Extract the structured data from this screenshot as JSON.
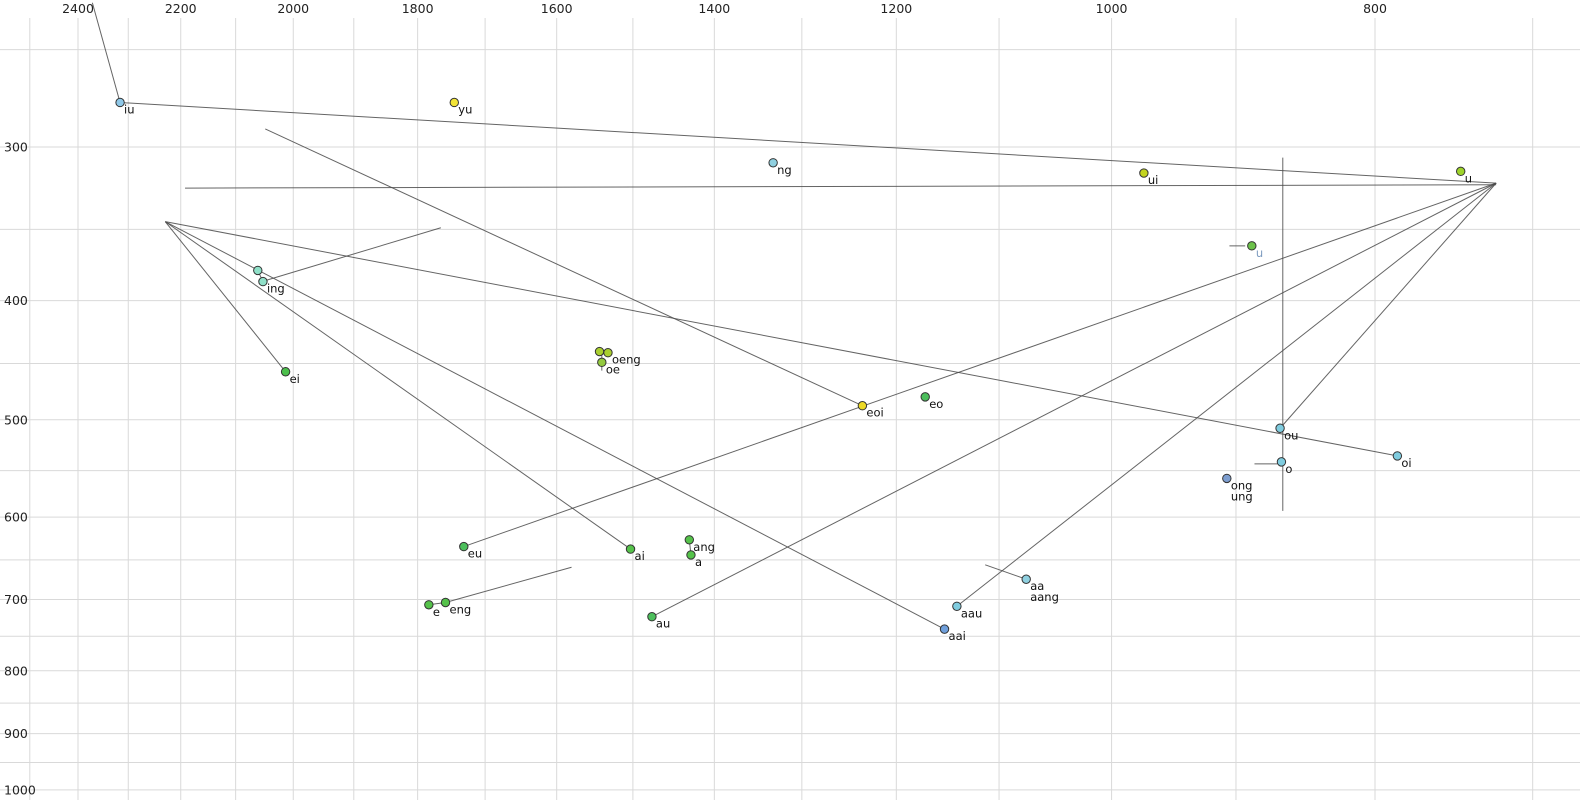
{
  "chart_data": {
    "type": "scatter",
    "title": "",
    "description": "Vowel formant plot (F2 horizontal, reversed, log scale; F1 vertical, downward, log scale) with labeled vowel points and diphthong trajectory lines",
    "x_axis": {
      "scale": "log",
      "direction": "reversed",
      "tick_labels": [
        2400,
        2200,
        2000,
        1800,
        1600,
        1400,
        1200,
        1000,
        800
      ],
      "grid_from": 2500,
      "grid_to": 700,
      "grid_step": 100,
      "range": [
        2565,
        672
      ]
    },
    "y_axis": {
      "scale": "log",
      "direction": "down",
      "tick_labels": [
        300,
        400,
        500,
        600,
        700,
        800,
        900,
        1000
      ],
      "grid_from": 250,
      "grid_to": 1000,
      "grid_step": 50,
      "range": [
        228,
        1010
      ]
    },
    "colors": {
      "background": "#ffffff",
      "grid": "#d9d9d9",
      "trajectory": "#4a4a4a",
      "point_stroke": "#333333",
      "label": "#111111",
      "tick_label": "#222222"
    },
    "points": [
      {
        "label": "iu",
        "f2": 2316,
        "f1": 276,
        "color": "#8fc8e8"
      },
      {
        "label": "yu",
        "f2": 1745,
        "f1": 276,
        "color": "#f2e437"
      },
      {
        "label": "ng",
        "f2": 1332,
        "f1": 309,
        "color": "#8fd0e0"
      },
      {
        "label": "ui",
        "f2": 973,
        "f1": 315,
        "color": "#c3d41f"
      },
      {
        "label": "u",
        "f2": 744,
        "f1": 314,
        "color": "#9ed32a"
      },
      {
        "label": "u",
        "f2": 888,
        "f1": 361,
        "color": "#6cc24a",
        "label_color": "#7e9cc0"
      },
      {
        "label": "ing",
        "f2": 2052,
        "f1": 386,
        "color": "#8fe0c8"
      },
      {
        "label": "",
        "f2": 2061,
        "f1": 378,
        "color": "#8fe0c8"
      },
      {
        "label": "ei",
        "f2": 2013,
        "f1": 457,
        "color": "#4cbf4c"
      },
      {
        "label": "oeng",
        "f2": 1532,
        "f1": 441,
        "color": "#a9cf2f"
      },
      {
        "label": "",
        "f2": 1543,
        "f1": 440,
        "color": "#a9cf2f"
      },
      {
        "label": "oe",
        "f2": 1540,
        "f1": 449,
        "color": "#93c93f"
      },
      {
        "label": "eoi",
        "f2": 1235,
        "f1": 487,
        "color": "#ecd926"
      },
      {
        "label": "eo",
        "f2": 1171,
        "f1": 479,
        "color": "#4cbf5c"
      },
      {
        "label": "ou",
        "f2": 867,
        "f1": 508,
        "color": "#7fccdf"
      },
      {
        "label": "o",
        "f2": 866,
        "f1": 541,
        "color": "#7fccdf"
      },
      {
        "label": "oi",
        "f2": 785,
        "f1": 535,
        "color": "#7fccdf"
      },
      {
        "label": "ong",
        "label2": "ung",
        "f2": 907,
        "f1": 558,
        "color": "#7d9ed0"
      },
      {
        "label": "eu",
        "f2": 1731,
        "f1": 634,
        "color": "#4cbf5c"
      },
      {
        "label": "ai",
        "f2": 1503,
        "f1": 637,
        "color": "#55c24a"
      },
      {
        "label": "ang",
        "f2": 1430,
        "f1": 626,
        "color": "#55c24a"
      },
      {
        "label": "a",
        "f2": 1428,
        "f1": 644,
        "color": "#55c24a"
      },
      {
        "label": "e",
        "f2": 1783,
        "f1": 707,
        "color": "#55c24a"
      },
      {
        "label": "eng",
        "f2": 1758,
        "f1": 704,
        "color": "#55c24a"
      },
      {
        "label": "au",
        "f2": 1476,
        "f1": 723,
        "color": "#4cbf5c"
      },
      {
        "label": "aau",
        "f2": 1140,
        "f1": 709,
        "color": "#7fccdf"
      },
      {
        "label": "aai",
        "f2": 1152,
        "f1": 740,
        "color": "#6f9fdb"
      },
      {
        "label": "aa",
        "label2": "aang",
        "f2": 1075,
        "f1": 674,
        "color": "#8fd0e0"
      }
    ],
    "lines": [
      {
        "name": "edge-to-iu",
        "from": [
          2371,
          229
        ],
        "to": [
          2316,
          276
        ]
      },
      {
        "name": "iu-to-u",
        "from": [
          2316,
          276
        ],
        "to": [
          722,
          321
        ]
      },
      {
        "name": "ui-to-i",
        "from": [
          2192,
          324
        ],
        "to": [
          722,
          322
        ]
      },
      {
        "name": "eu-to-u",
        "from": [
          1731,
          634
        ],
        "to": [
          722,
          321
        ]
      },
      {
        "name": "au-to-u",
        "from": [
          1476,
          723
        ],
        "to": [
          722,
          321
        ]
      },
      {
        "name": "aau-to-u",
        "from": [
          1140,
          709
        ],
        "to": [
          722,
          321
        ]
      },
      {
        "name": "ou-to-u",
        "from": [
          867,
          508
        ],
        "to": [
          722,
          321
        ]
      },
      {
        "name": "ei-to-i",
        "from": [
          2013,
          457
        ],
        "to": [
          2229,
          345
        ]
      },
      {
        "name": "ai-to-i",
        "from": [
          1503,
          637
        ],
        "to": [
          2229,
          345
        ]
      },
      {
        "name": "aai-to-i",
        "from": [
          1152,
          740
        ],
        "to": [
          2229,
          345
        ]
      },
      {
        "name": "oi-to-i",
        "from": [
          785,
          535
        ],
        "to": [
          2229,
          345
        ]
      },
      {
        "name": "eoi-track",
        "from": [
          2048,
          290
        ],
        "to": [
          1235,
          487
        ]
      },
      {
        "name": "vertical-track",
        "from": [
          865,
          306
        ],
        "to": [
          865,
          593
        ]
      },
      {
        "name": "o-stub",
        "from": [
          886,
          543
        ],
        "to": [
          869,
          543
        ]
      },
      {
        "name": "u-mid-stub",
        "from": [
          905,
          361
        ],
        "to": [
          893,
          361
        ]
      },
      {
        "name": "oe-tick",
        "from": [
          1540,
          440
        ],
        "to": [
          1540,
          456
        ]
      },
      {
        "name": "ing-stub",
        "from": [
          2054,
          386
        ],
        "to": [
          1765,
          349
        ]
      },
      {
        "name": "eng-stub",
        "from": [
          1758,
          704
        ],
        "to": [
          1580,
          659
        ]
      },
      {
        "name": "aa-stub",
        "from": [
          1075,
          674
        ],
        "to": [
          1113,
          656
        ]
      },
      {
        "name": "ang-a-link",
        "from": [
          1430,
          626
        ],
        "to": [
          1428,
          644
        ]
      },
      {
        "name": "e-eng-link",
        "from": [
          1783,
          707
        ],
        "to": [
          1758,
          704
        ]
      },
      {
        "name": "ing-pair-link",
        "from": [
          2052,
          386
        ],
        "to": [
          2061,
          378
        ]
      }
    ]
  }
}
